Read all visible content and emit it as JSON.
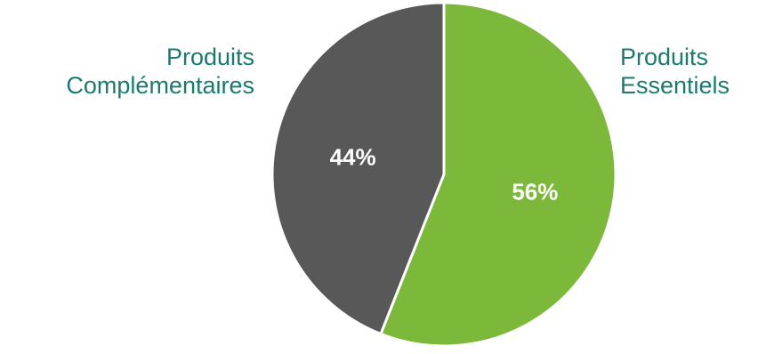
{
  "chart_data": {
    "type": "pie",
    "categories": [
      "Produits Essentiels",
      "Produits Complémentaires"
    ],
    "values": [
      56,
      44
    ],
    "data_labels": [
      "56%",
      "44%"
    ],
    "label_lines": [
      [
        "Produits",
        "Essentiels"
      ],
      [
        "Produits",
        "Complémentaires"
      ]
    ],
    "colors": [
      "#7cb83a",
      "#585858"
    ],
    "label_color": "#1a7a6e",
    "data_label_color": "#ffffff",
    "start_angle_deg": 0,
    "direction": "clockwise",
    "legend": "none"
  }
}
